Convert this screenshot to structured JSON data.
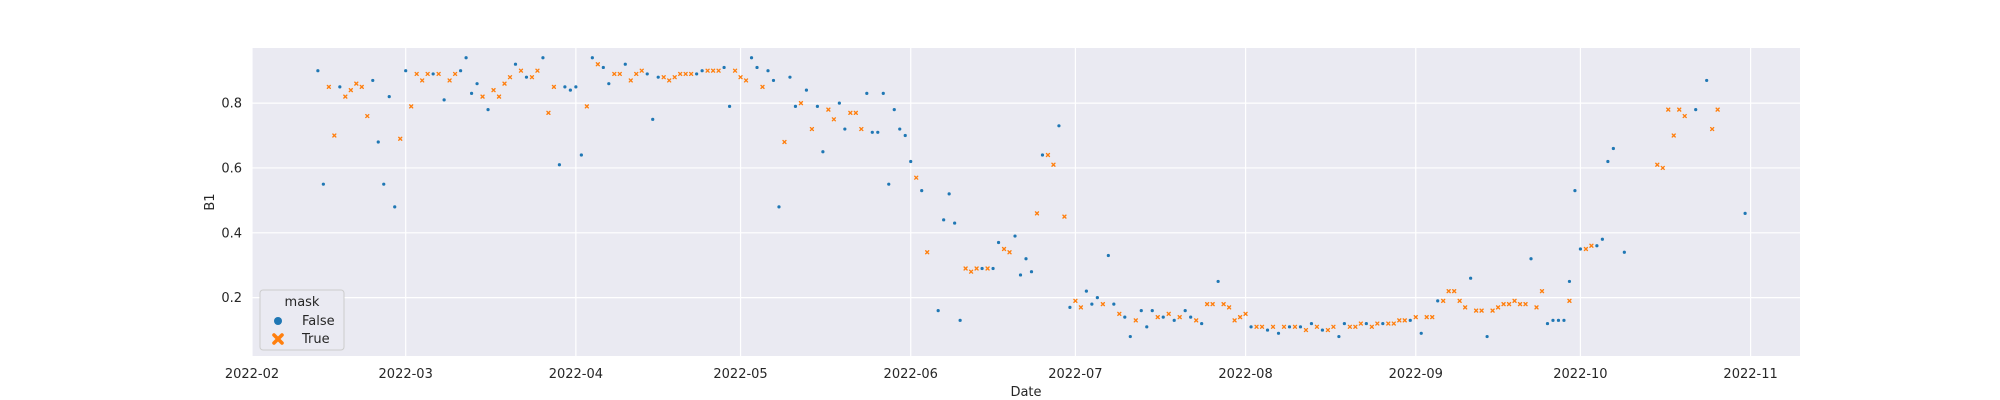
{
  "chart_data": {
    "type": "scatter",
    "title": "",
    "xlabel": "Date",
    "ylabel": "B1",
    "x_scale": "date",
    "xlim": [
      "2022-02-01",
      "2022-11-10"
    ],
    "ylim": [
      0.02,
      0.97
    ],
    "x_ticks": [
      "2022-02-01",
      "2022-03-01",
      "2022-04-01",
      "2022-05-01",
      "2022-06-01",
      "2022-07-01",
      "2022-08-01",
      "2022-09-01",
      "2022-10-01",
      "2022-11-01"
    ],
    "x_tick_labels": [
      "2022-02",
      "2022-03",
      "2022-04",
      "2022-05",
      "2022-06",
      "2022-07",
      "2022-08",
      "2022-09",
      "2022-10",
      "2022-11"
    ],
    "y_ticks": [
      0.2,
      0.4,
      0.6,
      0.8
    ],
    "y_tick_labels": [
      "0.2",
      "0.4",
      "0.6",
      "0.8"
    ],
    "grid": true,
    "background": "#eaeaf2",
    "legend": {
      "title": "mask",
      "placement": "lower-left",
      "entries": [
        {
          "label": "False",
          "marker": "circle",
          "color": "#1f77b4"
        },
        {
          "label": "True",
          "marker": "x",
          "color": "#ff7f0e"
        }
      ]
    },
    "series": [
      {
        "name": "False",
        "color": "#1f77b4",
        "marker": "circle",
        "points": [
          [
            "2022-02-13",
            0.9
          ],
          [
            "2022-02-14",
            0.55
          ],
          [
            "2022-02-17",
            0.85
          ],
          [
            "2022-02-23",
            0.87
          ],
          [
            "2022-02-24",
            0.68
          ],
          [
            "2022-02-25",
            0.55
          ],
          [
            "2022-02-26",
            0.82
          ],
          [
            "2022-02-27",
            0.48
          ],
          [
            "2022-03-01",
            0.9
          ],
          [
            "2022-03-06",
            0.89
          ],
          [
            "2022-03-08",
            0.81
          ],
          [
            "2022-03-11",
            0.9
          ],
          [
            "2022-03-12",
            0.94
          ],
          [
            "2022-03-13",
            0.83
          ],
          [
            "2022-03-14",
            0.86
          ],
          [
            "2022-03-16",
            0.78
          ],
          [
            "2022-03-21",
            0.92
          ],
          [
            "2022-03-23",
            0.88
          ],
          [
            "2022-03-26",
            0.94
          ],
          [
            "2022-03-29",
            0.61
          ],
          [
            "2022-03-30",
            0.85
          ],
          [
            "2022-03-31",
            0.84
          ],
          [
            "2022-04-01",
            0.85
          ],
          [
            "2022-04-02",
            0.64
          ],
          [
            "2022-04-04",
            0.94
          ],
          [
            "2022-04-06",
            0.91
          ],
          [
            "2022-04-07",
            0.86
          ],
          [
            "2022-04-10",
            0.92
          ],
          [
            "2022-04-14",
            0.89
          ],
          [
            "2022-04-15",
            0.75
          ],
          [
            "2022-04-16",
            0.88
          ],
          [
            "2022-04-23",
            0.89
          ],
          [
            "2022-04-24",
            0.9
          ],
          [
            "2022-04-28",
            0.91
          ],
          [
            "2022-04-29",
            0.79
          ],
          [
            "2022-05-03",
            0.94
          ],
          [
            "2022-05-04",
            0.91
          ],
          [
            "2022-05-06",
            0.9
          ],
          [
            "2022-05-07",
            0.87
          ],
          [
            "2022-05-08",
            0.48
          ],
          [
            "2022-05-10",
            0.88
          ],
          [
            "2022-05-11",
            0.79
          ],
          [
            "2022-05-13",
            0.84
          ],
          [
            "2022-05-15",
            0.79
          ],
          [
            "2022-05-16",
            0.65
          ],
          [
            "2022-05-19",
            0.8
          ],
          [
            "2022-05-20",
            0.72
          ],
          [
            "2022-05-24",
            0.83
          ],
          [
            "2022-05-25",
            0.71
          ],
          [
            "2022-05-26",
            0.71
          ],
          [
            "2022-05-27",
            0.83
          ],
          [
            "2022-05-28",
            0.55
          ],
          [
            "2022-05-29",
            0.78
          ],
          [
            "2022-05-30",
            0.72
          ],
          [
            "2022-05-31",
            0.7
          ],
          [
            "2022-06-01",
            0.62
          ],
          [
            "2022-06-03",
            0.53
          ],
          [
            "2022-06-06",
            0.16
          ],
          [
            "2022-06-07",
            0.44
          ],
          [
            "2022-06-08",
            0.52
          ],
          [
            "2022-06-09",
            0.43
          ],
          [
            "2022-06-10",
            0.13
          ],
          [
            "2022-06-14",
            0.29
          ],
          [
            "2022-06-16",
            0.29
          ],
          [
            "2022-06-17",
            0.37
          ],
          [
            "2022-06-20",
            0.39
          ],
          [
            "2022-06-21",
            0.27
          ],
          [
            "2022-06-22",
            0.32
          ],
          [
            "2022-06-23",
            0.28
          ],
          [
            "2022-06-25",
            0.64
          ],
          [
            "2022-06-28",
            0.73
          ],
          [
            "2022-06-30",
            0.17
          ],
          [
            "2022-07-03",
            0.22
          ],
          [
            "2022-07-04",
            0.18
          ],
          [
            "2022-07-05",
            0.2
          ],
          [
            "2022-07-07",
            0.33
          ],
          [
            "2022-07-08",
            0.18
          ],
          [
            "2022-07-10",
            0.14
          ],
          [
            "2022-07-11",
            0.08
          ],
          [
            "2022-07-13",
            0.16
          ],
          [
            "2022-07-14",
            0.11
          ],
          [
            "2022-07-15",
            0.16
          ],
          [
            "2022-07-17",
            0.14
          ],
          [
            "2022-07-19",
            0.13
          ],
          [
            "2022-07-21",
            0.16
          ],
          [
            "2022-07-22",
            0.14
          ],
          [
            "2022-07-24",
            0.12
          ],
          [
            "2022-07-27",
            0.25
          ],
          [
            "2022-08-02",
            0.11
          ],
          [
            "2022-08-05",
            0.1
          ],
          [
            "2022-08-07",
            0.09
          ],
          [
            "2022-08-09",
            0.11
          ],
          [
            "2022-08-11",
            0.11
          ],
          [
            "2022-08-13",
            0.12
          ],
          [
            "2022-08-15",
            0.1
          ],
          [
            "2022-08-18",
            0.08
          ],
          [
            "2022-08-19",
            0.12
          ],
          [
            "2022-08-23",
            0.12
          ],
          [
            "2022-08-26",
            0.12
          ],
          [
            "2022-08-31",
            0.13
          ],
          [
            "2022-09-02",
            0.09
          ],
          [
            "2022-09-05",
            0.19
          ],
          [
            "2022-09-11",
            0.26
          ],
          [
            "2022-09-14",
            0.08
          ],
          [
            "2022-09-22",
            0.32
          ],
          [
            "2022-09-25",
            0.12
          ],
          [
            "2022-09-26",
            0.13
          ],
          [
            "2022-09-27",
            0.13
          ],
          [
            "2022-09-28",
            0.13
          ],
          [
            "2022-09-29",
            0.25
          ],
          [
            "2022-09-30",
            0.53
          ],
          [
            "2022-10-01",
            0.35
          ],
          [
            "2022-10-04",
            0.36
          ],
          [
            "2022-10-05",
            0.38
          ],
          [
            "2022-10-06",
            0.62
          ],
          [
            "2022-10-07",
            0.66
          ],
          [
            "2022-10-09",
            0.34
          ],
          [
            "2022-10-22",
            0.78
          ],
          [
            "2022-10-24",
            0.87
          ],
          [
            "2022-10-31",
            0.46
          ]
        ]
      },
      {
        "name": "True",
        "color": "#ff7f0e",
        "marker": "x",
        "points": [
          [
            "2022-02-15",
            0.85
          ],
          [
            "2022-02-16",
            0.7
          ],
          [
            "2022-02-18",
            0.82
          ],
          [
            "2022-02-19",
            0.84
          ],
          [
            "2022-02-20",
            0.86
          ],
          [
            "2022-02-21",
            0.85
          ],
          [
            "2022-02-22",
            0.76
          ],
          [
            "2022-02-28",
            0.69
          ],
          [
            "2022-03-02",
            0.79
          ],
          [
            "2022-03-03",
            0.89
          ],
          [
            "2022-03-04",
            0.87
          ],
          [
            "2022-03-05",
            0.89
          ],
          [
            "2022-03-07",
            0.89
          ],
          [
            "2022-03-09",
            0.87
          ],
          [
            "2022-03-10",
            0.89
          ],
          [
            "2022-03-15",
            0.82
          ],
          [
            "2022-03-17",
            0.84
          ],
          [
            "2022-03-18",
            0.82
          ],
          [
            "2022-03-19",
            0.86
          ],
          [
            "2022-03-20",
            0.88
          ],
          [
            "2022-03-22",
            0.9
          ],
          [
            "2022-03-24",
            0.88
          ],
          [
            "2022-03-25",
            0.9
          ],
          [
            "2022-03-27",
            0.77
          ],
          [
            "2022-03-28",
            0.85
          ],
          [
            "2022-04-03",
            0.79
          ],
          [
            "2022-04-05",
            0.92
          ],
          [
            "2022-04-08",
            0.89
          ],
          [
            "2022-04-09",
            0.89
          ],
          [
            "2022-04-11",
            0.87
          ],
          [
            "2022-04-12",
            0.89
          ],
          [
            "2022-04-13",
            0.9
          ],
          [
            "2022-04-17",
            0.88
          ],
          [
            "2022-04-18",
            0.87
          ],
          [
            "2022-04-19",
            0.88
          ],
          [
            "2022-04-20",
            0.89
          ],
          [
            "2022-04-21",
            0.89
          ],
          [
            "2022-04-22",
            0.89
          ],
          [
            "2022-04-25",
            0.9
          ],
          [
            "2022-04-26",
            0.9
          ],
          [
            "2022-04-27",
            0.9
          ],
          [
            "2022-04-30",
            0.9
          ],
          [
            "2022-05-01",
            0.88
          ],
          [
            "2022-05-02",
            0.87
          ],
          [
            "2022-05-05",
            0.85
          ],
          [
            "2022-05-09",
            0.68
          ],
          [
            "2022-05-12",
            0.8
          ],
          [
            "2022-05-14",
            0.72
          ],
          [
            "2022-05-17",
            0.78
          ],
          [
            "2022-05-18",
            0.75
          ],
          [
            "2022-05-21",
            0.77
          ],
          [
            "2022-05-22",
            0.77
          ],
          [
            "2022-05-23",
            0.72
          ],
          [
            "2022-06-02",
            0.57
          ],
          [
            "2022-06-04",
            0.34
          ],
          [
            "2022-06-11",
            0.29
          ],
          [
            "2022-06-12",
            0.28
          ],
          [
            "2022-06-13",
            0.29
          ],
          [
            "2022-06-15",
            0.29
          ],
          [
            "2022-06-18",
            0.35
          ],
          [
            "2022-06-19",
            0.34
          ],
          [
            "2022-06-24",
            0.46
          ],
          [
            "2022-06-26",
            0.64
          ],
          [
            "2022-06-27",
            0.61
          ],
          [
            "2022-06-29",
            0.45
          ],
          [
            "2022-07-01",
            0.19
          ],
          [
            "2022-07-02",
            0.17
          ],
          [
            "2022-07-06",
            0.18
          ],
          [
            "2022-07-09",
            0.15
          ],
          [
            "2022-07-12",
            0.13
          ],
          [
            "2022-07-16",
            0.14
          ],
          [
            "2022-07-18",
            0.15
          ],
          [
            "2022-07-20",
            0.14
          ],
          [
            "2022-07-23",
            0.13
          ],
          [
            "2022-07-25",
            0.18
          ],
          [
            "2022-07-26",
            0.18
          ],
          [
            "2022-07-28",
            0.18
          ],
          [
            "2022-07-29",
            0.17
          ],
          [
            "2022-07-30",
            0.13
          ],
          [
            "2022-07-31",
            0.14
          ],
          [
            "2022-08-01",
            0.15
          ],
          [
            "2022-08-03",
            0.11
          ],
          [
            "2022-08-04",
            0.11
          ],
          [
            "2022-08-06",
            0.11
          ],
          [
            "2022-08-08",
            0.11
          ],
          [
            "2022-08-10",
            0.11
          ],
          [
            "2022-08-12",
            0.1
          ],
          [
            "2022-08-14",
            0.11
          ],
          [
            "2022-08-16",
            0.1
          ],
          [
            "2022-08-17",
            0.11
          ],
          [
            "2022-08-20",
            0.11
          ],
          [
            "2022-08-21",
            0.11
          ],
          [
            "2022-08-22",
            0.12
          ],
          [
            "2022-08-24",
            0.11
          ],
          [
            "2022-08-25",
            0.12
          ],
          [
            "2022-08-27",
            0.12
          ],
          [
            "2022-08-28",
            0.12
          ],
          [
            "2022-08-29",
            0.13
          ],
          [
            "2022-08-30",
            0.13
          ],
          [
            "2022-09-01",
            0.14
          ],
          [
            "2022-09-03",
            0.14
          ],
          [
            "2022-09-04",
            0.14
          ],
          [
            "2022-09-06",
            0.19
          ],
          [
            "2022-09-07",
            0.22
          ],
          [
            "2022-09-08",
            0.22
          ],
          [
            "2022-09-09",
            0.19
          ],
          [
            "2022-09-10",
            0.17
          ],
          [
            "2022-09-12",
            0.16
          ],
          [
            "2022-09-13",
            0.16
          ],
          [
            "2022-09-15",
            0.16
          ],
          [
            "2022-09-16",
            0.17
          ],
          [
            "2022-09-17",
            0.18
          ],
          [
            "2022-09-18",
            0.18
          ],
          [
            "2022-09-19",
            0.19
          ],
          [
            "2022-09-20",
            0.18
          ],
          [
            "2022-09-21",
            0.18
          ],
          [
            "2022-09-23",
            0.17
          ],
          [
            "2022-09-24",
            0.22
          ],
          [
            "2022-09-29",
            0.19
          ],
          [
            "2022-10-02",
            0.35
          ],
          [
            "2022-10-03",
            0.36
          ],
          [
            "2022-10-15",
            0.61
          ],
          [
            "2022-10-16",
            0.6
          ],
          [
            "2022-10-17",
            0.78
          ],
          [
            "2022-10-18",
            0.7
          ],
          [
            "2022-10-19",
            0.78
          ],
          [
            "2022-10-20",
            0.76
          ],
          [
            "2022-10-25",
            0.72
          ],
          [
            "2022-10-26",
            0.78
          ]
        ]
      }
    ]
  }
}
